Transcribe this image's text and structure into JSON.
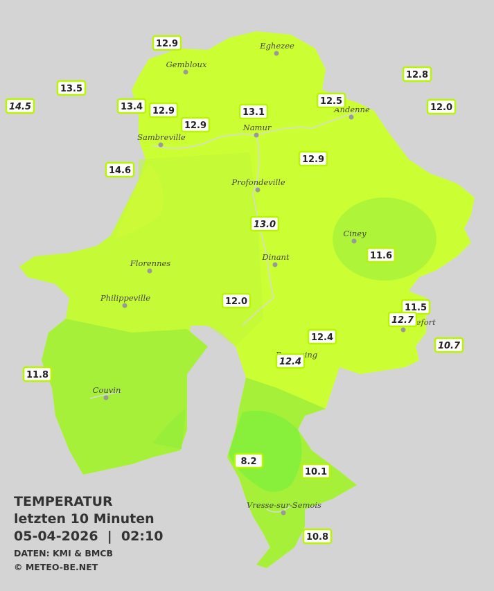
{
  "legend": {
    "title": "TEMPERATUR",
    "period": "letzten 10 Minuten",
    "datetime": "05-04-2026  |  02:10",
    "source": "DATEN: KMI & BMCB",
    "copyright": "© METEO-BE.NET"
  },
  "cities": [
    "Eghezee",
    "Gembloux",
    "Andenne",
    "Namur",
    "Sambreville",
    "Profondeville",
    "Ciney",
    "Dinant",
    "Florennes",
    "Philippeville",
    "Rochefort",
    "Beauraing",
    "Couvin",
    "Vresse-sur-Semois"
  ],
  "stations": [
    {
      "label": "12.9"
    },
    {
      "label": "13.5"
    },
    {
      "label": "14.5",
      "italic": true
    },
    {
      "label": "13.4"
    },
    {
      "label": "12.9"
    },
    {
      "label": "12.9"
    },
    {
      "label": "13.1"
    },
    {
      "label": "12.5"
    },
    {
      "label": "12.8"
    },
    {
      "label": "12.0"
    },
    {
      "label": "14.6"
    },
    {
      "label": "12.9"
    },
    {
      "label": "13.0",
      "italic": true
    },
    {
      "label": "11.6"
    },
    {
      "label": "12.0"
    },
    {
      "label": "11.5"
    },
    {
      "label": "12.7",
      "italic": true
    },
    {
      "label": "12.4"
    },
    {
      "label": "12.4",
      "italic": true
    },
    {
      "label": "10.7",
      "italic": true
    },
    {
      "label": "11.8"
    },
    {
      "label": "8.2"
    },
    {
      "label": "10.1"
    },
    {
      "label": "10.8"
    }
  ]
}
